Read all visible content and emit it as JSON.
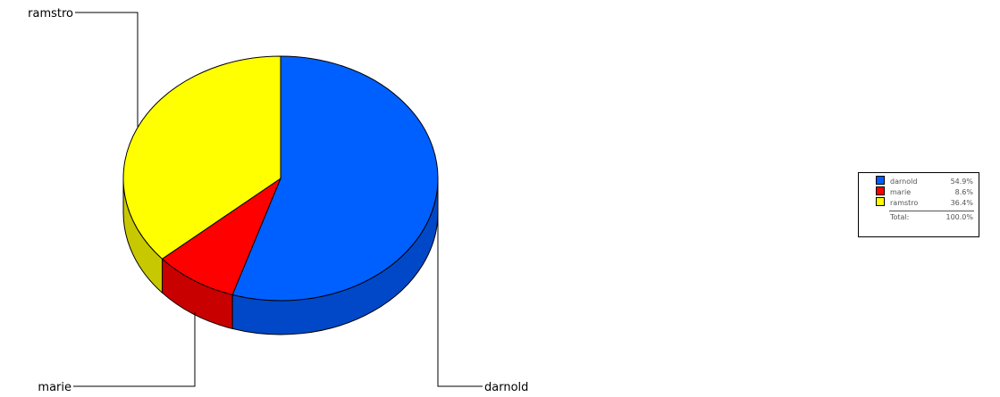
{
  "chart_data": {
    "type": "pie",
    "title": "",
    "slices": [
      {
        "label": "darnold",
        "value": 54.9,
        "percent_text": "54.9%",
        "color": "#0060FF",
        "side_color": "#0048C8"
      },
      {
        "label": "marie",
        "value": 8.6,
        "percent_text": "8.6%",
        "color": "#FF0000",
        "side_color": "#C80000"
      },
      {
        "label": "ramstro",
        "value": 36.4,
        "percent_text": "36.4%",
        "color": "#FFFF00",
        "side_color": "#C8C800"
      }
    ],
    "legend": {
      "placement": "right",
      "total_label": "Total:",
      "total_text": "100.0%"
    }
  }
}
